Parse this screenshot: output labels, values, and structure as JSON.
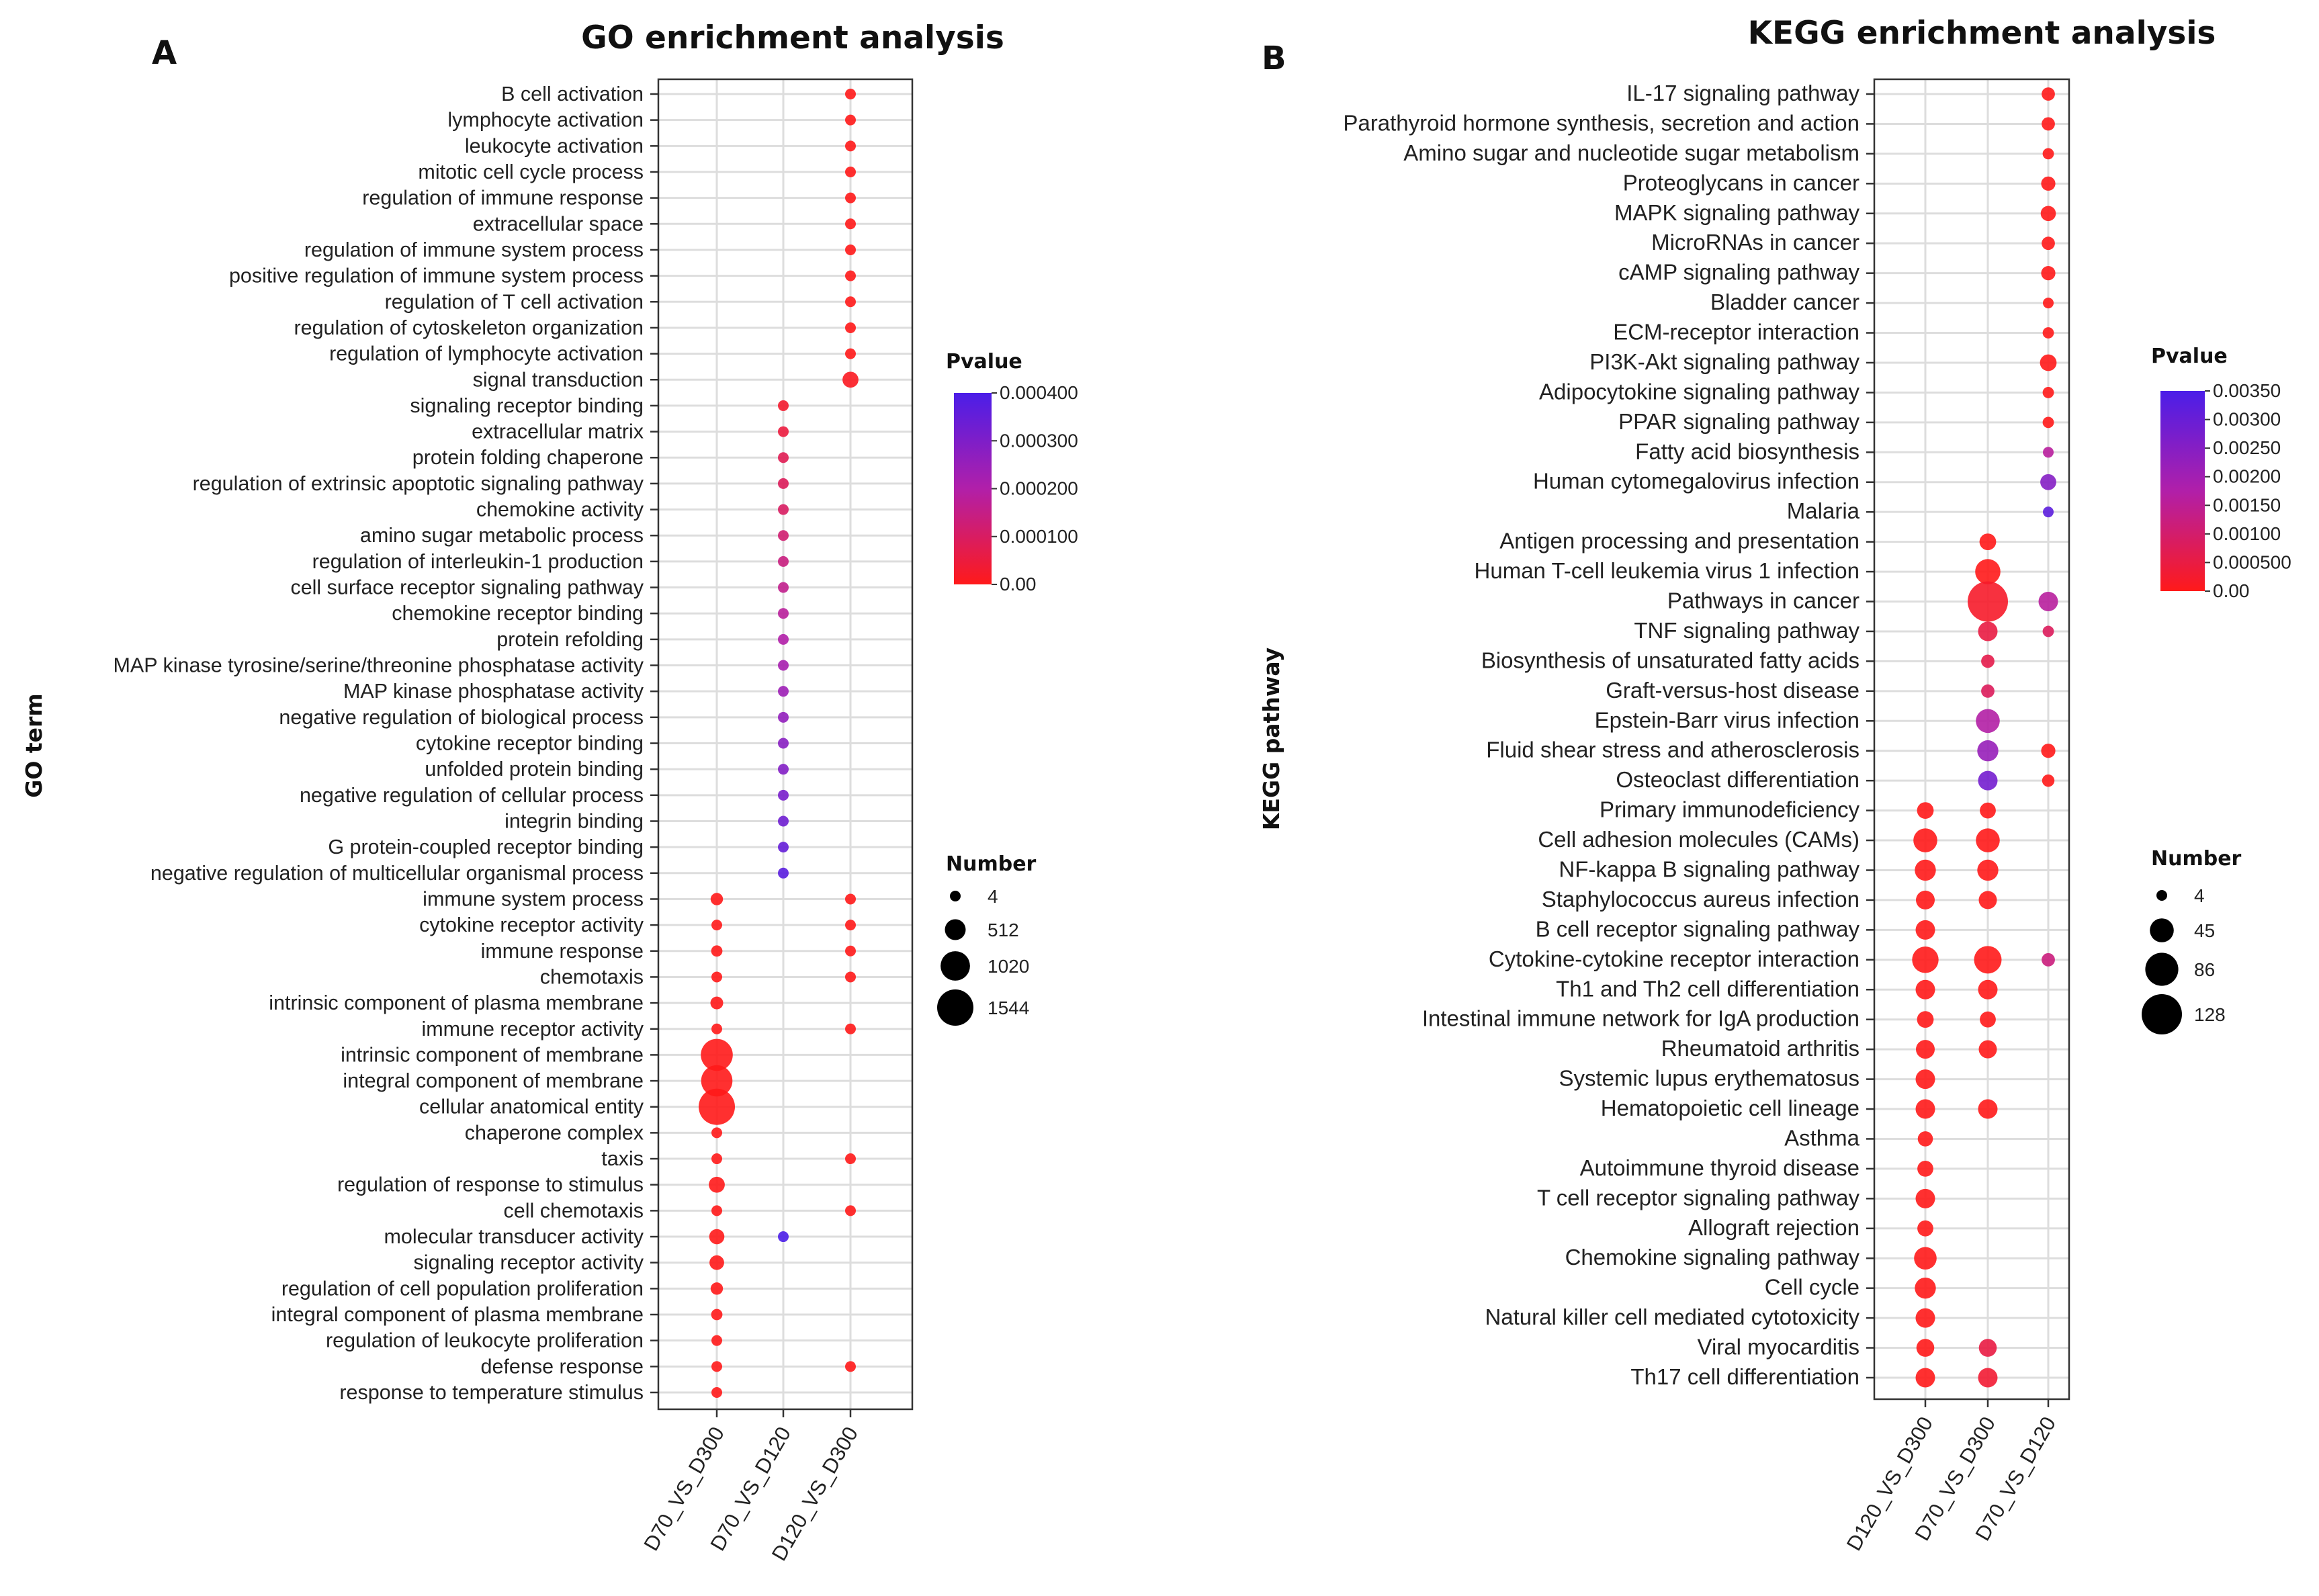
{
  "colors": {
    "low": "#ff1a1a",
    "mid": "#b11fa9",
    "high": "#4b1ee8"
  },
  "chart_data": [
    {
      "type": "scatter",
      "panel": "A",
      "title": "GO enrichment analysis",
      "ylabel": "GO term",
      "xlabel": "",
      "categories": [
        "D70_VS_D300",
        "D70_VS_D120",
        "D120_VS_D300"
      ],
      "terms": [
        "B cell activation",
        "lymphocyte activation",
        "leukocyte activation",
        "mitotic cell cycle process",
        "regulation of immune response",
        "extracellular space",
        "regulation of immune system process",
        "positive regulation of immune system process",
        "regulation of T cell activation",
        "regulation of cytoskeleton organization",
        "regulation of lymphocyte activation",
        "signal transduction",
        "signaling receptor binding",
        "extracellular matrix",
        "protein folding chaperone",
        "regulation of extrinsic apoptotic signaling pathway",
        "chemokine activity",
        "amino sugar metabolic process",
        "regulation of interleukin-1 production",
        "cell surface receptor signaling pathway",
        "chemokine receptor binding",
        "protein refolding",
        "MAP kinase tyrosine/serine/threonine phosphatase activity",
        "MAP kinase phosphatase activity",
        "negative regulation of biological process",
        "cytokine receptor binding",
        "unfolded protein binding",
        "negative regulation of cellular process",
        "integrin binding",
        "G protein-coupled receptor binding",
        "negative regulation of multicellular organismal process",
        "immune system process",
        "cytokine receptor activity",
        "immune response",
        "chemotaxis",
        "intrinsic component of plasma membrane",
        "immune receptor activity",
        "intrinsic component of membrane",
        "integral component of membrane",
        "cellular anatomical entity",
        "chaperone complex",
        "taxis",
        "regulation of response to stimulus",
        "cell chemotaxis",
        "molecular transducer activity",
        "signaling receptor activity",
        "regulation of cell population proliferation",
        "integral component of plasma membrane",
        "regulation of leukocyte proliferation",
        "defense response",
        "response to temperature stimulus"
      ],
      "points": [
        {
          "term": 0,
          "cat": 2,
          "number": 60,
          "pvalue": 0.0
        },
        {
          "term": 1,
          "cat": 2,
          "number": 70,
          "pvalue": 0.0
        },
        {
          "term": 2,
          "cat": 2,
          "number": 75,
          "pvalue": 0.0
        },
        {
          "term": 3,
          "cat": 2,
          "number": 80,
          "pvalue": 0.0
        },
        {
          "term": 4,
          "cat": 2,
          "number": 85,
          "pvalue": 0.0
        },
        {
          "term": 5,
          "cat": 2,
          "number": 90,
          "pvalue": 0.0
        },
        {
          "term": 6,
          "cat": 2,
          "number": 95,
          "pvalue": 0.0
        },
        {
          "term": 7,
          "cat": 2,
          "number": 85,
          "pvalue": 0.0
        },
        {
          "term": 8,
          "cat": 2,
          "number": 60,
          "pvalue": 0.0
        },
        {
          "term": 9,
          "cat": 2,
          "number": 65,
          "pvalue": 0.0
        },
        {
          "term": 10,
          "cat": 2,
          "number": 65,
          "pvalue": 0.0
        },
        {
          "term": 11,
          "cat": 2,
          "number": 300,
          "pvalue": 1e-05
        },
        {
          "term": 12,
          "cat": 1,
          "number": 30,
          "pvalue": 3e-05
        },
        {
          "term": 13,
          "cat": 1,
          "number": 20,
          "pvalue": 5e-05
        },
        {
          "term": 14,
          "cat": 1,
          "number": 8,
          "pvalue": 8e-05
        },
        {
          "term": 15,
          "cat": 1,
          "number": 12,
          "pvalue": 9e-05
        },
        {
          "term": 16,
          "cat": 1,
          "number": 10,
          "pvalue": 0.0001
        },
        {
          "term": 17,
          "cat": 1,
          "number": 8,
          "pvalue": 0.00012
        },
        {
          "term": 18,
          "cat": 1,
          "number": 8,
          "pvalue": 0.00014
        },
        {
          "term": 19,
          "cat": 1,
          "number": 40,
          "pvalue": 0.00016
        },
        {
          "term": 20,
          "cat": 1,
          "number": 12,
          "pvalue": 0.00018
        },
        {
          "term": 21,
          "cat": 1,
          "number": 6,
          "pvalue": 0.0002
        },
        {
          "term": 22,
          "cat": 1,
          "number": 5,
          "pvalue": 0.00022
        },
        {
          "term": 23,
          "cat": 1,
          "number": 6,
          "pvalue": 0.00024
        },
        {
          "term": 24,
          "cat": 1,
          "number": 80,
          "pvalue": 0.00026
        },
        {
          "term": 25,
          "cat": 1,
          "number": 15,
          "pvalue": 0.00028
        },
        {
          "term": 26,
          "cat": 1,
          "number": 10,
          "pvalue": 0.00029
        },
        {
          "term": 27,
          "cat": 1,
          "number": 70,
          "pvalue": 0.00031
        },
        {
          "term": 28,
          "cat": 1,
          "number": 10,
          "pvalue": 0.00033
        },
        {
          "term": 29,
          "cat": 1,
          "number": 10,
          "pvalue": 0.00035
        },
        {
          "term": 30,
          "cat": 1,
          "number": 15,
          "pvalue": 0.00037
        },
        {
          "term": 31,
          "cat": 0,
          "number": 180,
          "pvalue": 0.0
        },
        {
          "term": 31,
          "cat": 2,
          "number": 130,
          "pvalue": 0.0
        },
        {
          "term": 32,
          "cat": 0,
          "number": 100,
          "pvalue": 0.0
        },
        {
          "term": 32,
          "cat": 2,
          "number": 70,
          "pvalue": 0.0
        },
        {
          "term": 33,
          "cat": 0,
          "number": 150,
          "pvalue": 0.0
        },
        {
          "term": 33,
          "cat": 2,
          "number": 110,
          "pvalue": 0.0
        },
        {
          "term": 34,
          "cat": 0,
          "number": 100,
          "pvalue": 0.0
        },
        {
          "term": 34,
          "cat": 2,
          "number": 70,
          "pvalue": 0.0
        },
        {
          "term": 35,
          "cat": 0,
          "number": 190,
          "pvalue": 0.0
        },
        {
          "term": 36,
          "cat": 0,
          "number": 90,
          "pvalue": 0.0
        },
        {
          "term": 36,
          "cat": 2,
          "number": 50,
          "pvalue": 0.0
        },
        {
          "term": 37,
          "cat": 0,
          "number": 1200,
          "pvalue": 0.0
        },
        {
          "term": 38,
          "cat": 0,
          "number": 1150,
          "pvalue": 0.0
        },
        {
          "term": 39,
          "cat": 0,
          "number": 1544,
          "pvalue": 0.0
        },
        {
          "term": 40,
          "cat": 0,
          "number": 40,
          "pvalue": 0.0
        },
        {
          "term": 41,
          "cat": 0,
          "number": 100,
          "pvalue": 0.0
        },
        {
          "term": 41,
          "cat": 2,
          "number": 60,
          "pvalue": 0.0
        },
        {
          "term": 42,
          "cat": 0,
          "number": 300,
          "pvalue": 0.0
        },
        {
          "term": 43,
          "cat": 0,
          "number": 80,
          "pvalue": 0.0
        },
        {
          "term": 43,
          "cat": 2,
          "number": 55,
          "pvalue": 0.0
        },
        {
          "term": 44,
          "cat": 0,
          "number": 270,
          "pvalue": 0.0
        },
        {
          "term": 44,
          "cat": 1,
          "number": 50,
          "pvalue": 0.0004
        },
        {
          "term": 45,
          "cat": 0,
          "number": 250,
          "pvalue": 0.0
        },
        {
          "term": 46,
          "cat": 0,
          "number": 180,
          "pvalue": 0.0
        },
        {
          "term": 47,
          "cat": 0,
          "number": 150,
          "pvalue": 0.0
        },
        {
          "term": 48,
          "cat": 0,
          "number": 70,
          "pvalue": 0.0
        },
        {
          "term": 49,
          "cat": 0,
          "number": 130,
          "pvalue": 0.0
        },
        {
          "term": 49,
          "cat": 2,
          "number": 100,
          "pvalue": 0.0
        },
        {
          "term": 50,
          "cat": 0,
          "number": 30,
          "pvalue": 0.0
        }
      ],
      "pvalue_legend": {
        "title": "Pvalue",
        "min": 0.0,
        "max": 0.0004,
        "labels": [
          "0.000400",
          "0.000300",
          "0.000200",
          "0.000100",
          "0.00"
        ]
      },
      "size_legend": {
        "title": "Number",
        "values": [
          4,
          512,
          1020,
          1544
        ],
        "labels": [
          "4",
          "512",
          "1020",
          "1544"
        ]
      }
    },
    {
      "type": "scatter",
      "panel": "B",
      "title": "KEGG enrichment analysis",
      "ylabel": "KEGG pathway",
      "xlabel": "",
      "categories": [
        "D120_VS_D300",
        "D70_VS_D300",
        "D70_VS_D120"
      ],
      "terms": [
        "IL-17 signaling pathway",
        "Parathyroid hormone synthesis, secretion and action",
        "Amino sugar and nucleotide sugar metabolism",
        "Proteoglycans in cancer",
        "MAPK signaling pathway",
        "MicroRNAs in cancer",
        "cAMP signaling pathway",
        "Bladder cancer",
        "ECM-receptor interaction",
        "PI3K-Akt signaling pathway",
        "Adipocytokine signaling pathway",
        "PPAR signaling pathway",
        "Fatty acid biosynthesis",
        "Human cytomegalovirus infection",
        "Malaria",
        "Antigen processing and presentation",
        "Human T-cell leukemia virus 1 infection",
        "Pathways in cancer",
        "TNF signaling pathway",
        "Biosynthesis of unsaturated fatty acids",
        "Graft-versus-host disease",
        "Epstein-Barr virus infection",
        "Fluid shear stress and atherosclerosis",
        "Osteoclast differentiation",
        "Primary immunodeficiency",
        "Cell adhesion molecules (CAMs)",
        "NF-kappa B signaling pathway",
        "Staphylococcus aureus infection",
        "B cell receptor signaling pathway",
        "Cytokine-cytokine receptor interaction",
        "Th1 and Th2 cell differentiation",
        "Intestinal immune network for IgA production",
        "Rheumatoid arthritis",
        "Systemic lupus erythematosus",
        "Hematopoietic cell lineage",
        "Asthma",
        "Autoimmune thyroid disease",
        "T cell receptor signaling pathway",
        "Allograft rejection",
        "Chemokine signaling pathway",
        "Cell cycle",
        "Natural killer cell mediated cytotoxicity",
        "Viral myocarditis",
        "Th17 cell differentiation"
      ],
      "points": [
        {
          "term": 0,
          "cat": 2,
          "number": 14,
          "pvalue": 0.0
        },
        {
          "term": 1,
          "cat": 2,
          "number": 14,
          "pvalue": 0.0
        },
        {
          "term": 2,
          "cat": 2,
          "number": 10,
          "pvalue": 0.0
        },
        {
          "term": 3,
          "cat": 2,
          "number": 16,
          "pvalue": 0.0
        },
        {
          "term": 4,
          "cat": 2,
          "number": 18,
          "pvalue": 0.0
        },
        {
          "term": 5,
          "cat": 2,
          "number": 14,
          "pvalue": 0.0
        },
        {
          "term": 6,
          "cat": 2,
          "number": 16,
          "pvalue": 0.0
        },
        {
          "term": 7,
          "cat": 2,
          "number": 8,
          "pvalue": 0.0
        },
        {
          "term": 8,
          "cat": 2,
          "number": 10,
          "pvalue": 0.0
        },
        {
          "term": 9,
          "cat": 2,
          "number": 22,
          "pvalue": 0.0
        },
        {
          "term": 10,
          "cat": 2,
          "number": 10,
          "pvalue": 0.0
        },
        {
          "term": 11,
          "cat": 2,
          "number": 10,
          "pvalue": 0.0
        },
        {
          "term": 12,
          "cat": 2,
          "number": 4,
          "pvalue": 0.0016
        },
        {
          "term": 13,
          "cat": 2,
          "number": 20,
          "pvalue": 0.0025
        },
        {
          "term": 14,
          "cat": 2,
          "number": 6,
          "pvalue": 0.0032
        },
        {
          "term": 15,
          "cat": 1,
          "number": 22,
          "pvalue": 0.0
        },
        {
          "term": 16,
          "cat": 1,
          "number": 50,
          "pvalue": 0.0
        },
        {
          "term": 17,
          "cat": 1,
          "number": 128,
          "pvalue": 0.0002
        },
        {
          "term": 17,
          "cat": 2,
          "number": 30,
          "pvalue": 0.0016
        },
        {
          "term": 18,
          "cat": 1,
          "number": 30,
          "pvalue": 0.0005
        },
        {
          "term": 18,
          "cat": 2,
          "number": 10,
          "pvalue": 0.0008
        },
        {
          "term": 19,
          "cat": 1,
          "number": 14,
          "pvalue": 0.0006
        },
        {
          "term": 20,
          "cat": 1,
          "number": 14,
          "pvalue": 0.0008
        },
        {
          "term": 21,
          "cat": 1,
          "number": 45,
          "pvalue": 0.0017
        },
        {
          "term": 22,
          "cat": 1,
          "number": 35,
          "pvalue": 0.0022
        },
        {
          "term": 22,
          "cat": 2,
          "number": 16,
          "pvalue": 0.0
        },
        {
          "term": 23,
          "cat": 1,
          "number": 30,
          "pvalue": 0.0028
        },
        {
          "term": 23,
          "cat": 2,
          "number": 12,
          "pvalue": 0.0
        },
        {
          "term": 24,
          "cat": 0,
          "number": 22,
          "pvalue": 0.0
        },
        {
          "term": 24,
          "cat": 1,
          "number": 20,
          "pvalue": 0.0
        },
        {
          "term": 25,
          "cat": 0,
          "number": 45,
          "pvalue": 0.0
        },
        {
          "term": 25,
          "cat": 1,
          "number": 45,
          "pvalue": 0.0
        },
        {
          "term": 26,
          "cat": 0,
          "number": 35,
          "pvalue": 0.0
        },
        {
          "term": 26,
          "cat": 1,
          "number": 35,
          "pvalue": 0.0
        },
        {
          "term": 27,
          "cat": 0,
          "number": 28,
          "pvalue": 0.0
        },
        {
          "term": 27,
          "cat": 1,
          "number": 26,
          "pvalue": 0.0
        },
        {
          "term": 28,
          "cat": 0,
          "number": 30,
          "pvalue": 0.0
        },
        {
          "term": 29,
          "cat": 0,
          "number": 55,
          "pvalue": 0.0
        },
        {
          "term": 29,
          "cat": 1,
          "number": 60,
          "pvalue": 0.0
        },
        {
          "term": 29,
          "cat": 2,
          "number": 14,
          "pvalue": 0.0012
        },
        {
          "term": 30,
          "cat": 0,
          "number": 30,
          "pvalue": 0.0
        },
        {
          "term": 30,
          "cat": 1,
          "number": 30,
          "pvalue": 0.0
        },
        {
          "term": 31,
          "cat": 0,
          "number": 22,
          "pvalue": 0.0
        },
        {
          "term": 31,
          "cat": 1,
          "number": 20,
          "pvalue": 0.0
        },
        {
          "term": 32,
          "cat": 0,
          "number": 28,
          "pvalue": 0.0
        },
        {
          "term": 32,
          "cat": 1,
          "number": 26,
          "pvalue": 0.0
        },
        {
          "term": 33,
          "cat": 0,
          "number": 30,
          "pvalue": 0.0
        },
        {
          "term": 34,
          "cat": 0,
          "number": 30,
          "pvalue": 0.0
        },
        {
          "term": 34,
          "cat": 1,
          "number": 30,
          "pvalue": 0.0
        },
        {
          "term": 35,
          "cat": 0,
          "number": 18,
          "pvalue": 0.0
        },
        {
          "term": 36,
          "cat": 0,
          "number": 20,
          "pvalue": 0.0
        },
        {
          "term": 37,
          "cat": 0,
          "number": 30,
          "pvalue": 0.0
        },
        {
          "term": 38,
          "cat": 0,
          "number": 20,
          "pvalue": 0.0
        },
        {
          "term": 39,
          "cat": 0,
          "number": 40,
          "pvalue": 0.0
        },
        {
          "term": 40,
          "cat": 0,
          "number": 35,
          "pvalue": 0.0
        },
        {
          "term": 41,
          "cat": 0,
          "number": 30,
          "pvalue": 0.0
        },
        {
          "term": 42,
          "cat": 0,
          "number": 25,
          "pvalue": 0.0
        },
        {
          "term": 42,
          "cat": 1,
          "number": 25,
          "pvalue": 0.0005
        },
        {
          "term": 43,
          "cat": 0,
          "number": 30,
          "pvalue": 0.0
        },
        {
          "term": 43,
          "cat": 1,
          "number": 30,
          "pvalue": 0.0003
        }
      ],
      "pvalue_legend": {
        "title": "Pvalue",
        "min": 0.0,
        "max": 0.0035,
        "labels": [
          "0.00350",
          "0.00300",
          "0.00250",
          "0.00200",
          "0.00150",
          "0.00100",
          "0.000500",
          "0.00"
        ]
      },
      "size_legend": {
        "title": "Number",
        "values": [
          4,
          45,
          86,
          128
        ],
        "labels": [
          "4",
          "45",
          "86",
          "128"
        ]
      }
    }
  ]
}
